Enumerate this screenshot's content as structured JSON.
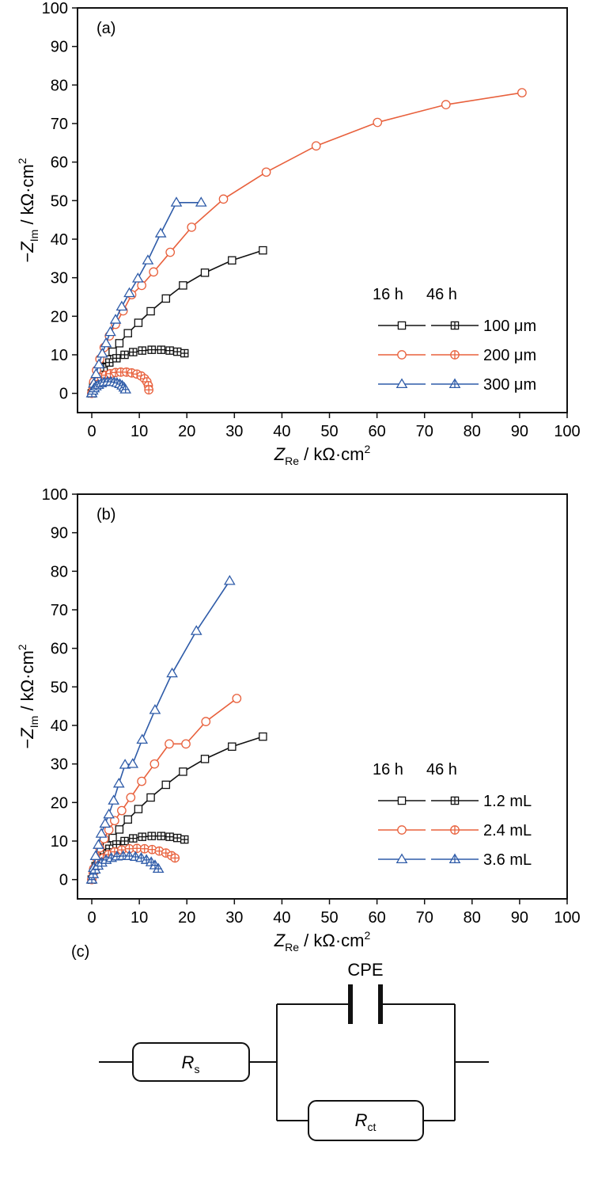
{
  "colors": {
    "black": "#111111",
    "orange": "#E8603C",
    "blue": "#2E5BA8"
  },
  "chart_data": [
    {
      "type": "scatter",
      "panel_label": "(a)",
      "xlabel": {
        "main": "Z",
        "sub": "Re",
        "rest": " / kΩ·cm",
        "sup": "2"
      },
      "ylabel": {
        "prefix": "−Z",
        "sub": "Im",
        "rest": " / kΩ·cm",
        "sup": "2"
      },
      "xlim": [
        -3,
        100
      ],
      "ylim": [
        -5,
        100
      ],
      "xticks": [
        0,
        10,
        20,
        30,
        40,
        50,
        60,
        70,
        80,
        90,
        100
      ],
      "yticks": [
        0,
        10,
        20,
        30,
        40,
        50,
        60,
        70,
        80,
        90,
        100
      ],
      "grid": false,
      "legend_placement": "right",
      "legend_headers": [
        "16 h",
        "46 h"
      ],
      "series": [
        {
          "name": "100 μm",
          "time": "16 h",
          "marker": "square",
          "color": "#111111",
          "x": [
            0,
            0.5,
            1.2,
            2.1,
            3.2,
            4.4,
            5.8,
            7.6,
            9.8,
            12.4,
            15.6,
            19.2,
            23.8,
            29.5,
            36.0
          ],
          "y": [
            0,
            2.5,
            4.9,
            6.9,
            8.8,
            10.8,
            13.0,
            15.6,
            18.3,
            21.3,
            24.6,
            28.0,
            31.3,
            34.5,
            37.1
          ]
        },
        {
          "name": "100 μm",
          "time": "46 h",
          "marker": "square-cross",
          "color": "#111111",
          "x": [
            0,
            0.3,
            0.8,
            1.5,
            2.5,
            3.7,
            5.2,
            6.9,
            8.7,
            10.6,
            12.6,
            14.6,
            16.4,
            18.0,
            19.5
          ],
          "y": [
            0,
            1.8,
            3.5,
            5.2,
            6.7,
            8.0,
            9.1,
            10.0,
            10.7,
            11.1,
            11.3,
            11.3,
            11.1,
            10.8,
            10.4
          ]
        },
        {
          "name": "200 μm",
          "time": "16 h",
          "marker": "circle",
          "color": "#E8603C",
          "x": [
            0,
            0.4,
            1.0,
            1.7,
            2.6,
            3.7,
            5.0,
            6.6,
            8.4,
            10.5,
            13.0,
            16.5,
            21.0,
            27.7,
            36.7,
            47.2,
            60.1,
            74.5,
            90.5
          ],
          "y": [
            0,
            3.0,
            6.0,
            8.9,
            11.9,
            14.9,
            17.9,
            21.4,
            25.6,
            28.0,
            31.5,
            36.6,
            43.1,
            50.4,
            57.4,
            64.2,
            70.3,
            74.9,
            78.0
          ]
        },
        {
          "name": "200 μm",
          "time": "46 h",
          "marker": "circle-cross",
          "color": "#E8603C",
          "x": [
            0,
            0.3,
            0.7,
            1.3,
            2.0,
            2.9,
            3.9,
            5.0,
            6.1,
            7.3,
            8.4,
            9.5,
            10.4,
            11.1,
            11.6,
            11.9,
            12.0
          ],
          "y": [
            0,
            1.3,
            2.4,
            3.3,
            4.1,
            4.7,
            5.1,
            5.4,
            5.5,
            5.5,
            5.3,
            5.0,
            4.5,
            3.8,
            3.0,
            2.0,
            0.9
          ]
        },
        {
          "name": "300 μm",
          "time": "16 h",
          "marker": "triangle",
          "color": "#2E5BA8",
          "x": [
            0,
            0.4,
            0.9,
            1.5,
            2.2,
            3.0,
            3.9,
            5.0,
            6.3,
            7.9,
            9.7,
            11.8,
            14.5,
            17.8,
            23.0
          ],
          "y": [
            0,
            2.5,
            5.0,
            7.5,
            10.3,
            13.0,
            15.9,
            19.1,
            22.5,
            26.0,
            29.8,
            34.5,
            41.5,
            49.5,
            49.5
          ]
        },
        {
          "name": "300 μm",
          "time": "46 h",
          "marker": "triangle-cross",
          "color": "#2E5BA8",
          "x": [
            0,
            0.2,
            0.5,
            0.9,
            1.4,
            2.0,
            2.6,
            3.3,
            4.0,
            4.7,
            5.3,
            5.9,
            6.4,
            6.8,
            7.1
          ],
          "y": [
            0,
            0.7,
            1.3,
            1.8,
            2.2,
            2.6,
            2.9,
            3.0,
            3.0,
            2.9,
            2.7,
            2.4,
            2.0,
            1.5,
            1.0
          ]
        }
      ]
    },
    {
      "type": "scatter",
      "panel_label": "(b)",
      "xlabel": {
        "main": "Z",
        "sub": "Re",
        "rest": " / kΩ·cm",
        "sup": "2"
      },
      "ylabel": {
        "prefix": "−Z",
        "sub": "Im",
        "rest": " / kΩ·cm",
        "sup": "2"
      },
      "xlim": [
        -3,
        100
      ],
      "ylim": [
        -5,
        100
      ],
      "xticks": [
        0,
        10,
        20,
        30,
        40,
        50,
        60,
        70,
        80,
        90,
        100
      ],
      "yticks": [
        0,
        10,
        20,
        30,
        40,
        50,
        60,
        70,
        80,
        90,
        100
      ],
      "grid": false,
      "legend_placement": "right",
      "legend_headers": [
        "16 h",
        "46 h"
      ],
      "series": [
        {
          "name": "1.2 mL",
          "time": "16 h",
          "marker": "square",
          "color": "#111111",
          "x": [
            0,
            0.5,
            1.2,
            2.1,
            3.2,
            4.4,
            5.8,
            7.6,
            9.8,
            12.4,
            15.6,
            19.2,
            23.8,
            29.5,
            36.0
          ],
          "y": [
            0,
            2.5,
            4.9,
            6.9,
            8.8,
            10.8,
            13.0,
            15.6,
            18.3,
            21.3,
            24.6,
            28.0,
            31.3,
            34.5,
            37.1
          ]
        },
        {
          "name": "1.2 mL",
          "time": "46 h",
          "marker": "square-cross",
          "color": "#111111",
          "x": [
            0,
            0.3,
            0.8,
            1.5,
            2.5,
            3.7,
            5.2,
            6.9,
            8.7,
            10.6,
            12.6,
            14.6,
            16.4,
            18.0,
            19.5
          ],
          "y": [
            0,
            1.8,
            3.5,
            5.2,
            6.7,
            8.0,
            9.1,
            10.0,
            10.7,
            11.1,
            11.3,
            11.3,
            11.1,
            10.8,
            10.4
          ]
        },
        {
          "name": "2.4 mL",
          "time": "16 h",
          "marker": "circle",
          "color": "#E8603C",
          "x": [
            0,
            0.4,
            1.0,
            1.7,
            2.6,
            3.6,
            4.8,
            6.3,
            8.2,
            10.5,
            13.2,
            16.3,
            19.8,
            24.0,
            30.5
          ],
          "y": [
            0,
            2.8,
            5.6,
            8.2,
            10.6,
            12.9,
            15.3,
            17.9,
            21.3,
            25.5,
            30.0,
            35.2,
            35.2,
            41.0,
            47.0
          ]
        },
        {
          "name": "2.4 mL",
          "time": "46 h",
          "marker": "circle-cross",
          "color": "#E8603C",
          "x": [
            0,
            0.3,
            0.8,
            1.5,
            2.4,
            3.5,
            4.8,
            6.3,
            7.9,
            9.5,
            11.1,
            12.7,
            14.2,
            15.6,
            16.8,
            17.5
          ],
          "y": [
            0,
            1.7,
            3.2,
            4.5,
            5.6,
            6.5,
            7.2,
            7.7,
            8.0,
            8.1,
            8.0,
            7.8,
            7.4,
            6.9,
            6.2,
            5.6
          ]
        },
        {
          "name": "3.6 mL",
          "time": "16 h",
          "marker": "triangle",
          "color": "#2E5BA8",
          "x": [
            0,
            0.4,
            0.8,
            1.4,
            2.0,
            2.8,
            3.6,
            4.6,
            5.7,
            7.0,
            8.6,
            10.6,
            13.3,
            16.9,
            22.0,
            29.0
          ],
          "y": [
            0,
            3.0,
            6.1,
            9.0,
            11.9,
            14.5,
            16.9,
            20.5,
            24.9,
            29.8,
            30.0,
            36.3,
            44.0,
            53.5,
            64.5,
            77.5
          ]
        },
        {
          "name": "3.6 mL",
          "time": "46 h",
          "marker": "triangle-cross",
          "color": "#2E5BA8",
          "x": [
            0,
            0.3,
            0.7,
            1.3,
            2.1,
            3.0,
            4.1,
            5.3,
            6.6,
            7.9,
            9.2,
            10.4,
            11.5,
            12.5,
            13.3,
            14.0
          ],
          "y": [
            0,
            1.4,
            2.6,
            3.6,
            4.4,
            5.1,
            5.6,
            6.0,
            6.1,
            6.1,
            5.9,
            5.6,
            5.1,
            4.5,
            3.7,
            2.8
          ]
        }
      ]
    }
  ],
  "circuit": {
    "panel_label": "(c)",
    "cpe_label": "CPE",
    "rs_label": {
      "main": "R",
      "sub": "s"
    },
    "rct_label": {
      "main": "R",
      "sub": "ct"
    }
  }
}
